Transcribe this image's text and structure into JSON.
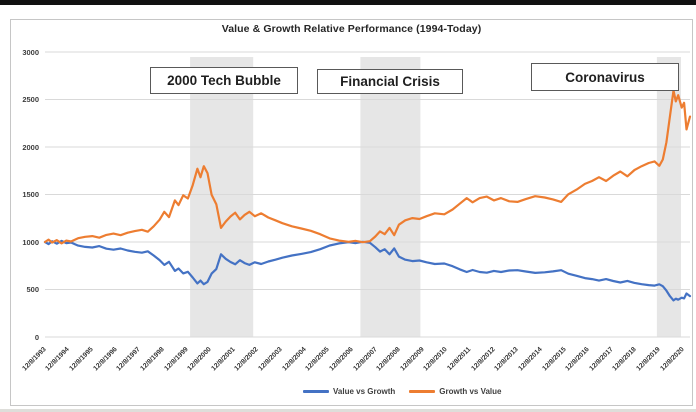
{
  "chart_data": {
    "type": "line",
    "title": "Value & Growth Relative Performance (1994-Today)",
    "xlabel": "",
    "ylabel": "",
    "ylim": [
      0,
      3000
    ],
    "y_ticks": [
      0,
      500,
      1000,
      1500,
      2000,
      2500,
      3000
    ],
    "grid": true,
    "legend_position": "bottom",
    "x_tick_labels": [
      "12/8/1993",
      "12/8/1994",
      "12/8/1995",
      "12/8/1996",
      "12/8/1997",
      "12/8/1998",
      "12/8/1999",
      "12/8/2000",
      "12/8/2001",
      "12/8/2002",
      "12/8/2003",
      "12/8/2004",
      "12/8/2005",
      "12/8/2006",
      "12/8/2007",
      "12/8/2008",
      "12/8/2009",
      "12/8/2010",
      "12/8/2011",
      "12/8/2012",
      "12/8/2013",
      "12/8/2014",
      "12/8/2015",
      "12/8/2016",
      "12/8/2017",
      "12/8/2018",
      "12/8/2019",
      "12/8/2020"
    ],
    "x_unit": "years since 12/8/1993",
    "x_span_years": 27.3,
    "band_color": "#d2d2d2",
    "band_opacity": 0.55,
    "annotations": [
      {
        "label": "2000 Tech Bubble",
        "band_t0": 6.14,
        "band_t1": 8.81
      },
      {
        "label": "Financial Crisis",
        "band_t0": 13.35,
        "band_t1": 15.89
      },
      {
        "label": "Coronavirus",
        "band_t0": 25.9,
        "band_t1": 26.92
      }
    ],
    "series": [
      {
        "name": "Value vs Growth",
        "color": "#4472C4",
        "points": [
          [
            0,
            1000
          ],
          [
            0.15,
            978
          ],
          [
            0.3,
            1008
          ],
          [
            0.5,
            982
          ],
          [
            0.7,
            1012
          ],
          [
            0.9,
            988
          ],
          [
            1.1,
            995
          ],
          [
            1.4,
            962
          ],
          [
            1.7,
            948
          ],
          [
            2,
            942
          ],
          [
            2.3,
            957
          ],
          [
            2.6,
            930
          ],
          [
            2.9,
            919
          ],
          [
            3.2,
            932
          ],
          [
            3.5,
            911
          ],
          [
            3.8,
            897
          ],
          [
            4.1,
            887
          ],
          [
            4.35,
            902
          ],
          [
            4.6,
            858
          ],
          [
            4.85,
            810
          ],
          [
            5.05,
            759
          ],
          [
            5.25,
            792
          ],
          [
            5.5,
            696
          ],
          [
            5.65,
            721
          ],
          [
            5.85,
            670
          ],
          [
            6.05,
            686
          ],
          [
            6.25,
            626
          ],
          [
            6.45,
            564
          ],
          [
            6.58,
            594
          ],
          [
            6.72,
            556
          ],
          [
            6.88,
            580
          ],
          [
            7.05,
            667
          ],
          [
            7.25,
            715
          ],
          [
            7.45,
            871
          ],
          [
            7.65,
            823
          ],
          [
            7.85,
            789
          ],
          [
            8.05,
            765
          ],
          [
            8.25,
            808
          ],
          [
            8.45,
            778
          ],
          [
            8.65,
            759
          ],
          [
            8.88,
            786
          ],
          [
            9.15,
            768
          ],
          [
            9.45,
            795
          ],
          [
            9.75,
            814
          ],
          [
            10.05,
            835
          ],
          [
            10.45,
            858
          ],
          [
            10.85,
            875
          ],
          [
            11.25,
            894
          ],
          [
            11.65,
            924
          ],
          [
            12.05,
            963
          ],
          [
            12.45,
            985
          ],
          [
            12.85,
            998
          ],
          [
            13.15,
            988
          ],
          [
            13.45,
            1002
          ],
          [
            13.75,
            992
          ],
          [
            13.98,
            945
          ],
          [
            14.18,
            899
          ],
          [
            14.38,
            924
          ],
          [
            14.58,
            871
          ],
          [
            14.78,
            933
          ],
          [
            14.98,
            846
          ],
          [
            15.25,
            814
          ],
          [
            15.55,
            799
          ],
          [
            15.85,
            805
          ],
          [
            16.15,
            786
          ],
          [
            16.5,
            768
          ],
          [
            16.9,
            774
          ],
          [
            17.25,
            745
          ],
          [
            17.55,
            713
          ],
          [
            17.85,
            684
          ],
          [
            18.1,
            705
          ],
          [
            18.4,
            684
          ],
          [
            18.7,
            677
          ],
          [
            19,
            696
          ],
          [
            19.3,
            684
          ],
          [
            19.65,
            700
          ],
          [
            20,
            703
          ],
          [
            20.35,
            689
          ],
          [
            20.75,
            675
          ],
          [
            21.15,
            681
          ],
          [
            21.5,
            691
          ],
          [
            21.85,
            703
          ],
          [
            22.15,
            666
          ],
          [
            22.5,
            644
          ],
          [
            22.85,
            620
          ],
          [
            23.15,
            609
          ],
          [
            23.45,
            594
          ],
          [
            23.75,
            609
          ],
          [
            24.05,
            589
          ],
          [
            24.35,
            574
          ],
          [
            24.65,
            591
          ],
          [
            24.95,
            569
          ],
          [
            25.25,
            556
          ],
          [
            25.55,
            546
          ],
          [
            25.8,
            541
          ],
          [
            26,
            555
          ],
          [
            26.15,
            535
          ],
          [
            26.3,
            488
          ],
          [
            26.45,
            431
          ],
          [
            26.6,
            385
          ],
          [
            26.7,
            403
          ],
          [
            26.8,
            393
          ],
          [
            26.95,
            414
          ],
          [
            27.05,
            406
          ],
          [
            27.15,
            458
          ],
          [
            27.3,
            431
          ]
        ]
      },
      {
        "name": "Growth vs Value",
        "color": "#ED7D31",
        "points": [
          [
            0,
            1000
          ],
          [
            0.15,
            1025
          ],
          [
            0.3,
            995
          ],
          [
            0.5,
            1020
          ],
          [
            0.7,
            985
          ],
          [
            0.9,
            1015
          ],
          [
            1.1,
            1005
          ],
          [
            1.4,
            1040
          ],
          [
            1.7,
            1055
          ],
          [
            2,
            1062
          ],
          [
            2.3,
            1045
          ],
          [
            2.6,
            1075
          ],
          [
            2.9,
            1088
          ],
          [
            3.2,
            1072
          ],
          [
            3.5,
            1098
          ],
          [
            3.8,
            1115
          ],
          [
            4.1,
            1128
          ],
          [
            4.35,
            1108
          ],
          [
            4.6,
            1165
          ],
          [
            4.85,
            1235
          ],
          [
            5.05,
            1318
          ],
          [
            5.25,
            1262
          ],
          [
            5.5,
            1438
          ],
          [
            5.65,
            1388
          ],
          [
            5.85,
            1492
          ],
          [
            6.05,
            1458
          ],
          [
            6.25,
            1598
          ],
          [
            6.45,
            1772
          ],
          [
            6.58,
            1682
          ],
          [
            6.72,
            1798
          ],
          [
            6.88,
            1725
          ],
          [
            7.05,
            1498
          ],
          [
            7.25,
            1398
          ],
          [
            7.45,
            1148
          ],
          [
            7.65,
            1215
          ],
          [
            7.85,
            1268
          ],
          [
            8.05,
            1308
          ],
          [
            8.25,
            1238
          ],
          [
            8.45,
            1285
          ],
          [
            8.65,
            1318
          ],
          [
            8.88,
            1272
          ],
          [
            9.15,
            1302
          ],
          [
            9.45,
            1258
          ],
          [
            9.75,
            1228
          ],
          [
            10.05,
            1198
          ],
          [
            10.45,
            1165
          ],
          [
            10.85,
            1142
          ],
          [
            11.25,
            1118
          ],
          [
            11.65,
            1082
          ],
          [
            12.05,
            1038
          ],
          [
            12.45,
            1015
          ],
          [
            12.85,
            1002
          ],
          [
            13.15,
            1012
          ],
          [
            13.45,
            998
          ],
          [
            13.75,
            1008
          ],
          [
            13.98,
            1058
          ],
          [
            14.18,
            1112
          ],
          [
            14.38,
            1082
          ],
          [
            14.58,
            1148
          ],
          [
            14.78,
            1072
          ],
          [
            14.98,
            1182
          ],
          [
            15.25,
            1228
          ],
          [
            15.55,
            1252
          ],
          [
            15.85,
            1242
          ],
          [
            16.15,
            1272
          ],
          [
            16.5,
            1302
          ],
          [
            16.9,
            1292
          ],
          [
            17.25,
            1342
          ],
          [
            17.55,
            1402
          ],
          [
            17.85,
            1462
          ],
          [
            18.1,
            1418
          ],
          [
            18.4,
            1462
          ],
          [
            18.7,
            1478
          ],
          [
            19,
            1438
          ],
          [
            19.3,
            1462
          ],
          [
            19.65,
            1428
          ],
          [
            20,
            1422
          ],
          [
            20.35,
            1452
          ],
          [
            20.75,
            1482
          ],
          [
            21.15,
            1468
          ],
          [
            21.5,
            1448
          ],
          [
            21.85,
            1422
          ],
          [
            22.15,
            1502
          ],
          [
            22.5,
            1552
          ],
          [
            22.85,
            1612
          ],
          [
            23.15,
            1642
          ],
          [
            23.45,
            1682
          ],
          [
            23.75,
            1642
          ],
          [
            24.05,
            1698
          ],
          [
            24.35,
            1742
          ],
          [
            24.65,
            1692
          ],
          [
            24.95,
            1758
          ],
          [
            25.25,
            1798
          ],
          [
            25.55,
            1832
          ],
          [
            25.8,
            1848
          ],
          [
            26,
            1802
          ],
          [
            26.15,
            1868
          ],
          [
            26.3,
            2050
          ],
          [
            26.45,
            2320
          ],
          [
            26.6,
            2595
          ],
          [
            26.7,
            2480
          ],
          [
            26.8,
            2545
          ],
          [
            26.95,
            2415
          ],
          [
            27.05,
            2465
          ],
          [
            27.15,
            2185
          ],
          [
            27.3,
            2320
          ]
        ]
      }
    ]
  },
  "legend": {
    "items": [
      {
        "label": "Value vs Growth",
        "color": "#4472C4"
      },
      {
        "label": "Growth vs Value",
        "color": "#ED7D31"
      }
    ]
  },
  "grid_color": "#d9d9d9"
}
